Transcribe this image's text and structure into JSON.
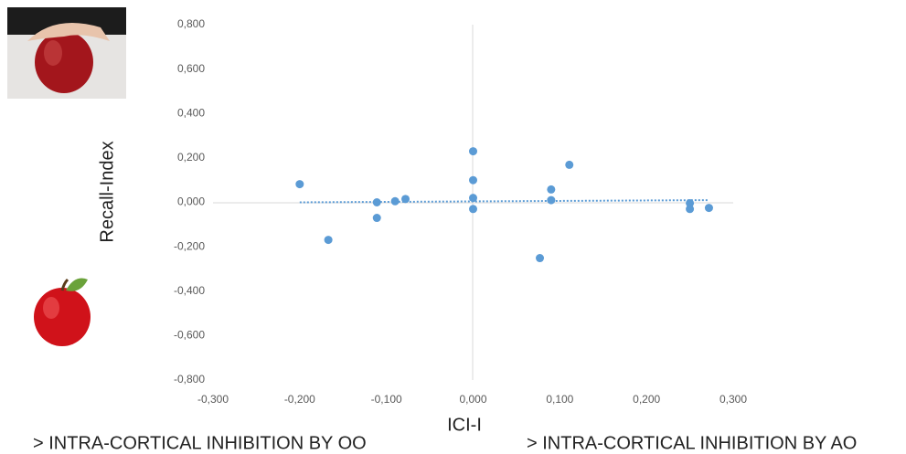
{
  "chart_data": {
    "type": "scatter",
    "xlabel": "ICI-I",
    "ylabel": "Recall-Index",
    "annotations": [
      "> INTRA-CORTICAL INHIBITION BY OO",
      "> INTRA-CORTICAL INHIBITION BY AO"
    ],
    "x": [
      -0.2,
      -0.167,
      -0.111,
      -0.111,
      -0.09,
      -0.078,
      0,
      0,
      0,
      0,
      0.077,
      0.09,
      0.09,
      0.111,
      0.25,
      0.25,
      0.272
    ],
    "values": [
      0.082,
      -0.169,
      0,
      -0.07,
      0.005,
      0.015,
      0.23,
      0.1,
      0.02,
      -0.03,
      -0.251,
      0.058,
      0.01,
      0.169,
      -0.004,
      -0.03,
      -0.025
    ],
    "color": "#5b9bd5",
    "trendline": {
      "x": [
        -0.2,
        0.272
      ],
      "y": [
        0.0,
        0.01
      ]
    },
    "xlim": [
      -0.3,
      0.3
    ],
    "xticks": [
      {
        "value": -0.3,
        "label": "-0,300"
      },
      {
        "value": -0.2,
        "label": "-0,200"
      },
      {
        "value": -0.1,
        "label": "-0,100"
      },
      {
        "value": 0,
        "label": "0,000"
      },
      {
        "value": 0.1,
        "label": "0,100"
      },
      {
        "value": 0.2,
        "label": "0,200"
      },
      {
        "value": 0.3,
        "label": "0,300"
      }
    ],
    "ylim": [
      -0.8,
      0.8
    ],
    "yticks": [
      {
        "value": -0.8,
        "label": "-0,800"
      },
      {
        "value": -0.6,
        "label": "-0,600"
      },
      {
        "value": -0.4,
        "label": "-0,400"
      },
      {
        "value": -0.2,
        "label": "-0,200"
      },
      {
        "value": 0,
        "label": "0,000"
      },
      {
        "value": 0.2,
        "label": "0,200"
      },
      {
        "value": 0.4,
        "label": "0,400"
      },
      {
        "value": 0.6,
        "label": "0,600"
      },
      {
        "value": 0.8,
        "label": "0,800"
      }
    ]
  }
}
